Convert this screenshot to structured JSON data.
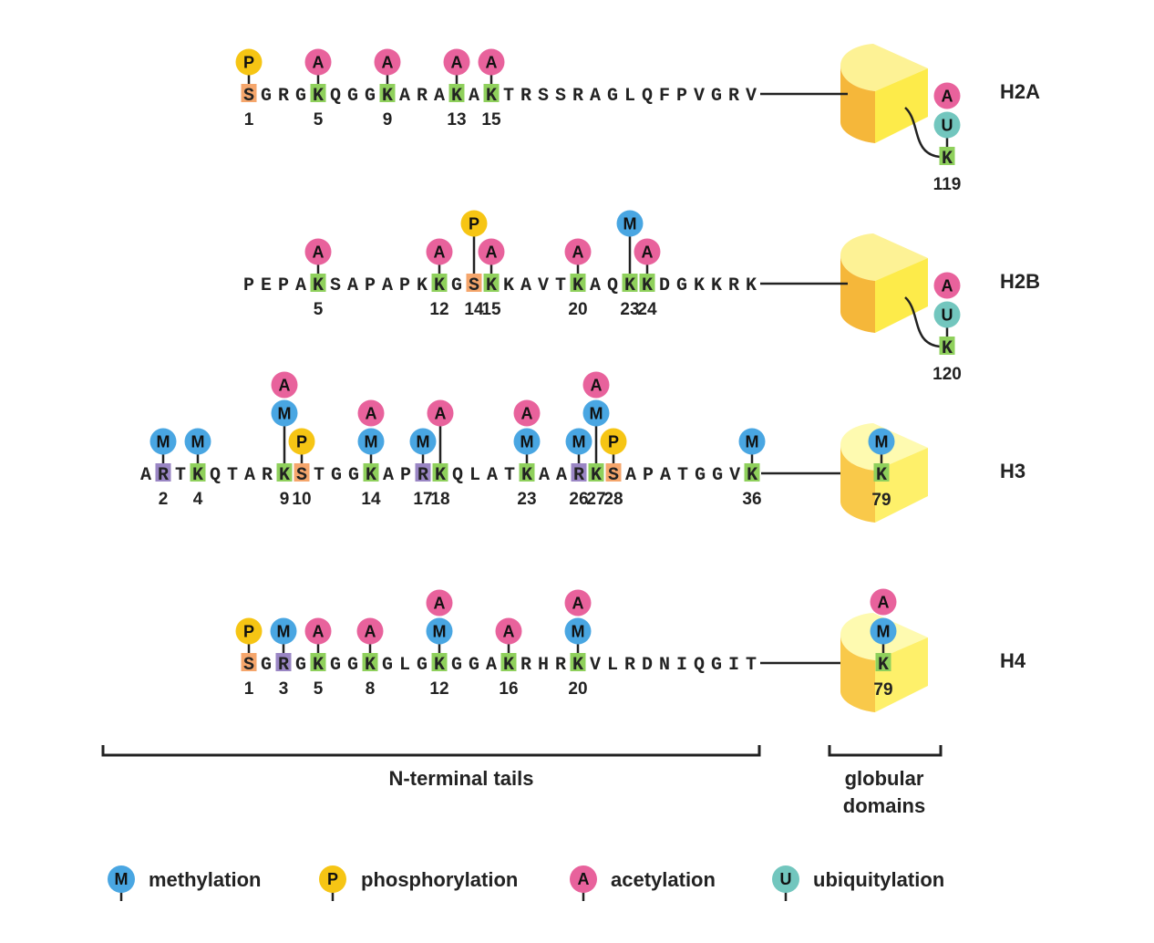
{
  "colors": {
    "M": "#49a6e2",
    "P": "#f6c514",
    "A": "#e8629c",
    "U": "#72c6be",
    "K_box": "#8fd05c",
    "S_box": "#f5a66c",
    "R_box": "#9a86c4",
    "globular_dark": "#f5b73a",
    "globular_light": "#fdf07a"
  },
  "histones": [
    {
      "name": "H2A",
      "sequence": "SGRGKQGGKARAKAKTRSSRAGLQFPVGRV",
      "tail_mods": [
        {
          "position": 1,
          "residue": "S",
          "marks": [
            "P"
          ]
        },
        {
          "position": 5,
          "residue": "K",
          "marks": [
            "A"
          ]
        },
        {
          "position": 9,
          "residue": "K",
          "marks": [
            "A"
          ]
        },
        {
          "position": 13,
          "residue": "K",
          "marks": [
            "A"
          ]
        },
        {
          "position": 15,
          "residue": "K",
          "marks": [
            "A"
          ]
        }
      ],
      "globular": {
        "residue": "K",
        "position": 119,
        "marks": [
          "U",
          "A"
        ]
      }
    },
    {
      "name": "H2B",
      "sequence": "PEPAKSAPAPKKGSKKAVTKAQKKDGKKRK",
      "tail_mods": [
        {
          "position": 5,
          "residue": "K",
          "marks": [
            "A"
          ]
        },
        {
          "position": 12,
          "residue": "K",
          "marks": [
            "A"
          ]
        },
        {
          "position": 14,
          "residue": "S",
          "marks": [
            "P"
          ]
        },
        {
          "position": 15,
          "residue": "K",
          "marks": [
            "A"
          ]
        },
        {
          "position": 20,
          "residue": "K",
          "marks": [
            "A"
          ]
        },
        {
          "position": 23,
          "residue": "K",
          "marks": [
            "M"
          ]
        },
        {
          "position": 24,
          "residue": "K",
          "marks": [
            "A"
          ]
        }
      ],
      "globular": {
        "residue": "K",
        "position": 120,
        "marks": [
          "U",
          "A"
        ]
      }
    },
    {
      "name": "H3",
      "sequence": "ARTKQTARKSTGGKAPRKQLATKAARKSAPATGGVK",
      "tail_mods": [
        {
          "position": 2,
          "residue": "R",
          "marks": [
            "M"
          ]
        },
        {
          "position": 4,
          "residue": "K",
          "marks": [
            "M"
          ]
        },
        {
          "position": 9,
          "residue": "K",
          "marks": [
            "M",
            "A"
          ]
        },
        {
          "position": 10,
          "residue": "S",
          "marks": [
            "P"
          ]
        },
        {
          "position": 14,
          "residue": "K",
          "marks": [
            "M",
            "A"
          ]
        },
        {
          "position": 17,
          "residue": "R",
          "marks": [
            "M"
          ]
        },
        {
          "position": 18,
          "residue": "K",
          "marks": [
            "A"
          ]
        },
        {
          "position": 23,
          "residue": "K",
          "marks": [
            "M",
            "A"
          ]
        },
        {
          "position": 26,
          "residue": "R",
          "marks": [
            "M"
          ]
        },
        {
          "position": 27,
          "residue": "K",
          "marks": [
            "M",
            "A"
          ]
        },
        {
          "position": 28,
          "residue": "S",
          "marks": [
            "P"
          ]
        },
        {
          "position": 36,
          "residue": "K",
          "marks": [
            "M"
          ]
        }
      ],
      "globular": {
        "residue": "K",
        "position": 79,
        "marks": [
          "M"
        ]
      }
    },
    {
      "name": "H4",
      "sequence": "SGRGKGGKGLGKGGAKRHRKVLRDNIQGIT",
      "tail_mods": [
        {
          "position": 1,
          "residue": "S",
          "marks": [
            "P"
          ]
        },
        {
          "position": 3,
          "residue": "R",
          "marks": [
            "M"
          ]
        },
        {
          "position": 5,
          "residue": "K",
          "marks": [
            "A"
          ]
        },
        {
          "position": 8,
          "residue": "K",
          "marks": [
            "A"
          ]
        },
        {
          "position": 12,
          "residue": "K",
          "marks": [
            "M",
            "A"
          ]
        },
        {
          "position": 16,
          "residue": "K",
          "marks": [
            "A"
          ]
        },
        {
          "position": 20,
          "residue": "K",
          "marks": [
            "M",
            "A"
          ]
        }
      ],
      "globular": {
        "residue": "K",
        "position": 79,
        "marks": [
          "M",
          "A"
        ]
      }
    }
  ],
  "brackets": {
    "tails": "N-terminal tails",
    "globular_line1": "globular",
    "globular_line2": "domains"
  },
  "legend": [
    {
      "symbol": "M",
      "label": "methylation"
    },
    {
      "symbol": "P",
      "label": "phosphorylation"
    },
    {
      "symbol": "A",
      "label": "acetylation"
    },
    {
      "symbol": "U",
      "label": "ubiquitylation"
    }
  ]
}
